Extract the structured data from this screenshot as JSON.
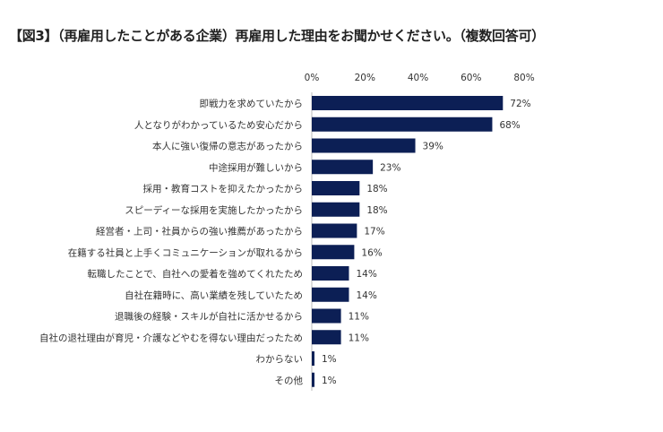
{
  "chart_data": {
    "type": "bar",
    "orientation": "horizontal",
    "title": "【図3】（再雇用したことがある企業）再雇用した理由をお聞かせください。（複数回答可）",
    "categories": [
      "即戦力を求めていたから",
      "人となりがわかっているため安心だから",
      "本人に強い復帰の意志があったから",
      "中途採用が難しいから",
      "採用・教育コストを抑えたかったから",
      "スピーディーな採用を実施したかったから",
      "経営者・上司・社員からの強い推薦があったから",
      "在籍する社員と上手くコミュニケーションが取れるから",
      "転職したことで、自社への愛着を強めてくれたため",
      "自社在籍時に、高い業績を残していたため",
      "退職後の経験・スキルが自社に活かせるから",
      "自社の退社理由が育児・介護などやむを得ない理由だったため",
      "わからない",
      "その他"
    ],
    "values": [
      72,
      68,
      39,
      23,
      18,
      18,
      17,
      16,
      14,
      14,
      11,
      11,
      1,
      1
    ],
    "data_labels": [
      "72%",
      "68%",
      "39%",
      "23%",
      "18%",
      "18%",
      "17%",
      "16%",
      "14%",
      "14%",
      "11%",
      "11%",
      "1%",
      "1%"
    ],
    "xlim": [
      0,
      80
    ],
    "x_ticks": [
      "0%",
      "20%",
      "40%",
      "60%",
      "80%"
    ],
    "x_axis_position": "top",
    "grid": false,
    "legend": false,
    "bar_color": "#0c1f55"
  }
}
